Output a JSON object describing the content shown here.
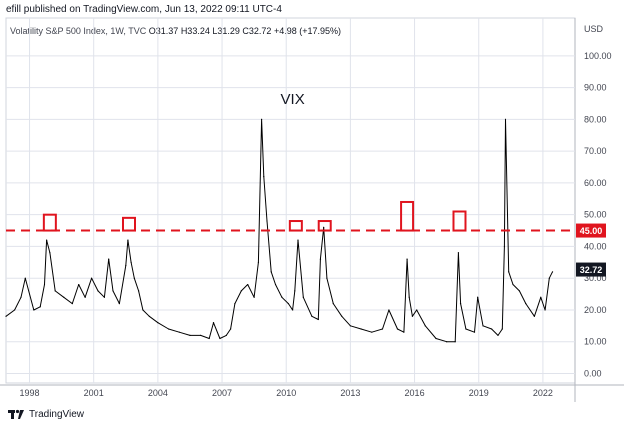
{
  "header": {
    "author": "efill",
    "published_text": "published on TradingView.com, Jun 13, 2022 09:11 UTC-4"
  },
  "legend": {
    "symbol": "Volatility S&P 500 Index, 1W, TVC",
    "open": "O31.37",
    "high": "H33.24",
    "low": "L31.29",
    "close": "C32.72",
    "change": "+4.98 (+17.95%)"
  },
  "footer": {
    "brand": "TradingView",
    "logo_icon": "tradingview-logo-icon"
  },
  "chart_data": {
    "type": "line",
    "title": "VIX",
    "currency_label": "USD",
    "x_ticks": [
      "1998",
      "2001",
      "2004",
      "2007",
      "2010",
      "2013",
      "2016",
      "2019",
      "2022"
    ],
    "y_ticks": [
      "0.00",
      "10.00",
      "20.00",
      "30.00",
      "40.00",
      "50.00",
      "60.00",
      "70.00",
      "80.00",
      "90.00",
      "100.00"
    ],
    "ylim": [
      -3,
      105
    ],
    "xlim": [
      1996.9,
      2023.5
    ],
    "grid": true,
    "series": [
      {
        "values_note": "",
        "x": [
          1996.9,
          1997.3,
          1997.6,
          1997.8,
          1998.2,
          1998.5,
          1998.7,
          1998.8,
          1998.95,
          1999.2,
          1999.6,
          2000.0,
          2000.3,
          2000.6,
          2000.9,
          2001.2,
          2001.5,
          2001.7,
          2001.9,
          2002.2,
          2002.5,
          2002.6,
          2002.75,
          2002.9,
          2003.1,
          2003.3,
          2003.6,
          2004.0,
          2004.5,
          2005.0,
          2005.5,
          2006.0,
          2006.4,
          2006.6,
          2006.9,
          2007.2,
          2007.4,
          2007.6,
          2007.9,
          2008.2,
          2008.5,
          2008.7,
          2008.85,
          2008.95,
          2009.1,
          2009.3,
          2009.5,
          2009.8,
          2010.1,
          2010.3,
          2010.4,
          2010.55,
          2010.8,
          2011.2,
          2011.5,
          2011.6,
          2011.75,
          2011.9,
          2012.2,
          2012.6,
          2013.0,
          2013.5,
          2014.0,
          2014.5,
          2014.8,
          2015.2,
          2015.5,
          2015.65,
          2015.75,
          2015.9,
          2016.1,
          2016.5,
          2017.0,
          2017.5,
          2017.9,
          2018.05,
          2018.15,
          2018.4,
          2018.8,
          2018.95,
          2019.2,
          2019.6,
          2019.9,
          2020.1,
          2020.2,
          2020.25,
          2020.4,
          2020.6,
          2020.9,
          2021.2,
          2021.6,
          2021.9,
          2022.1,
          2022.3,
          2022.45
        ],
        "y": [
          18,
          20,
          24,
          30,
          20,
          21,
          28,
          42,
          38,
          26,
          24,
          22,
          28,
          24,
          30,
          26,
          24,
          36,
          26,
          22,
          34,
          42,
          35,
          30,
          26,
          20,
          18,
          16,
          14,
          13,
          12,
          12,
          11,
          16,
          11,
          12,
          14,
          22,
          26,
          28,
          24,
          35,
          80,
          62,
          48,
          32,
          28,
          24,
          22,
          20,
          26,
          42,
          24,
          18,
          17,
          36,
          46,
          30,
          22,
          18,
          15,
          14,
          13,
          14,
          20,
          14,
          13,
          36,
          24,
          18,
          20,
          15,
          11,
          10,
          10,
          38,
          22,
          14,
          13,
          24,
          15,
          14,
          12,
          14,
          40,
          80,
          32,
          28,
          26,
          22,
          18,
          24,
          20,
          30,
          32
        ]
      }
    ],
    "threshold": {
      "value": 45,
      "label": "45.00",
      "color": "#e0141e"
    },
    "last_price": {
      "value": 32.72,
      "label": "32.72"
    },
    "highlight_boxes": [
      {
        "x": 1998.95,
        "y_low": 45,
        "y_high": 50
      },
      {
        "x": 2002.65,
        "y_low": 45,
        "y_high": 49
      },
      {
        "x": 2010.45,
        "y_low": 45,
        "y_high": 48
      },
      {
        "x": 2011.8,
        "y_low": 45,
        "y_high": 48
      },
      {
        "x": 2015.65,
        "y_low": 45,
        "y_high": 54
      },
      {
        "x": 2018.1,
        "y_low": 45,
        "y_high": 51
      }
    ],
    "colors": {
      "line": "#000000",
      "threshold": "#e0141e",
      "box": "#e0141e",
      "grid": "#e0e3eb"
    }
  }
}
